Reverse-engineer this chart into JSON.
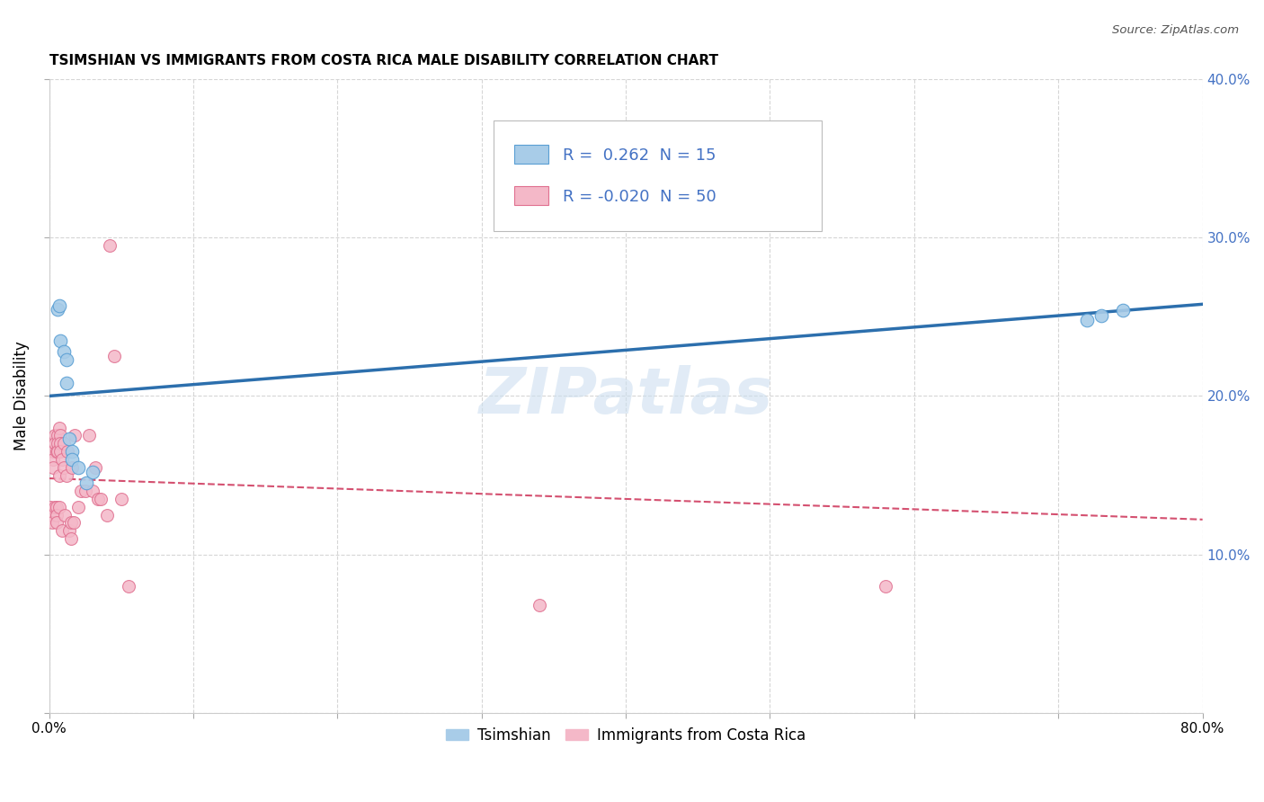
{
  "title": "TSIMSHIAN VS IMMIGRANTS FROM COSTA RICA MALE DISABILITY CORRELATION CHART",
  "source": "Source: ZipAtlas.com",
  "ylabel": "Male Disability",
  "xlim": [
    0,
    0.8
  ],
  "ylim": [
    0,
    0.4
  ],
  "watermark": "ZIPatlas",
  "legend_blue_R": "0.262",
  "legend_blue_N": "15",
  "legend_pink_R": "-0.020",
  "legend_pink_N": "50",
  "blue_scatter_color": "#a8cce8",
  "blue_scatter_edge": "#5a9fd4",
  "pink_scatter_color": "#f4b8c8",
  "pink_scatter_edge": "#e07090",
  "blue_line_color": "#2c6fad",
  "pink_line_color": "#d45070",
  "right_axis_color": "#4472c4",
  "tsimshian_x": [
    0.006,
    0.007,
    0.008,
    0.01,
    0.012,
    0.012,
    0.014,
    0.016,
    0.016,
    0.02,
    0.026,
    0.03,
    0.72,
    0.73,
    0.745
  ],
  "tsimshian_y": [
    0.255,
    0.257,
    0.235,
    0.228,
    0.223,
    0.208,
    0.173,
    0.165,
    0.16,
    0.155,
    0.145,
    0.152,
    0.248,
    0.251,
    0.254
  ],
  "costa_rica_x": [
    0.001,
    0.002,
    0.002,
    0.003,
    0.003,
    0.003,
    0.004,
    0.004,
    0.004,
    0.005,
    0.005,
    0.005,
    0.005,
    0.006,
    0.006,
    0.006,
    0.007,
    0.007,
    0.007,
    0.008,
    0.008,
    0.008,
    0.009,
    0.009,
    0.01,
    0.01,
    0.011,
    0.012,
    0.013,
    0.014,
    0.015,
    0.015,
    0.016,
    0.017,
    0.018,
    0.02,
    0.022,
    0.025,
    0.028,
    0.03,
    0.032,
    0.034,
    0.036,
    0.04,
    0.042,
    0.045,
    0.05,
    0.055,
    0.34,
    0.58
  ],
  "costa_rica_y": [
    0.13,
    0.125,
    0.12,
    0.165,
    0.16,
    0.155,
    0.175,
    0.17,
    0.13,
    0.165,
    0.13,
    0.125,
    0.12,
    0.175,
    0.17,
    0.165,
    0.18,
    0.15,
    0.13,
    0.175,
    0.17,
    0.165,
    0.16,
    0.115,
    0.17,
    0.155,
    0.125,
    0.15,
    0.165,
    0.115,
    0.12,
    0.11,
    0.155,
    0.12,
    0.175,
    0.13,
    0.14,
    0.14,
    0.175,
    0.14,
    0.155,
    0.135,
    0.135,
    0.125,
    0.295,
    0.225,
    0.135,
    0.08,
    0.068,
    0.08
  ],
  "blue_trendline_x": [
    0.0,
    0.8
  ],
  "blue_trendline_y": [
    0.2,
    0.258
  ],
  "pink_trendline_x": [
    0.0,
    0.8
  ],
  "pink_trendline_y": [
    0.148,
    0.122
  ]
}
